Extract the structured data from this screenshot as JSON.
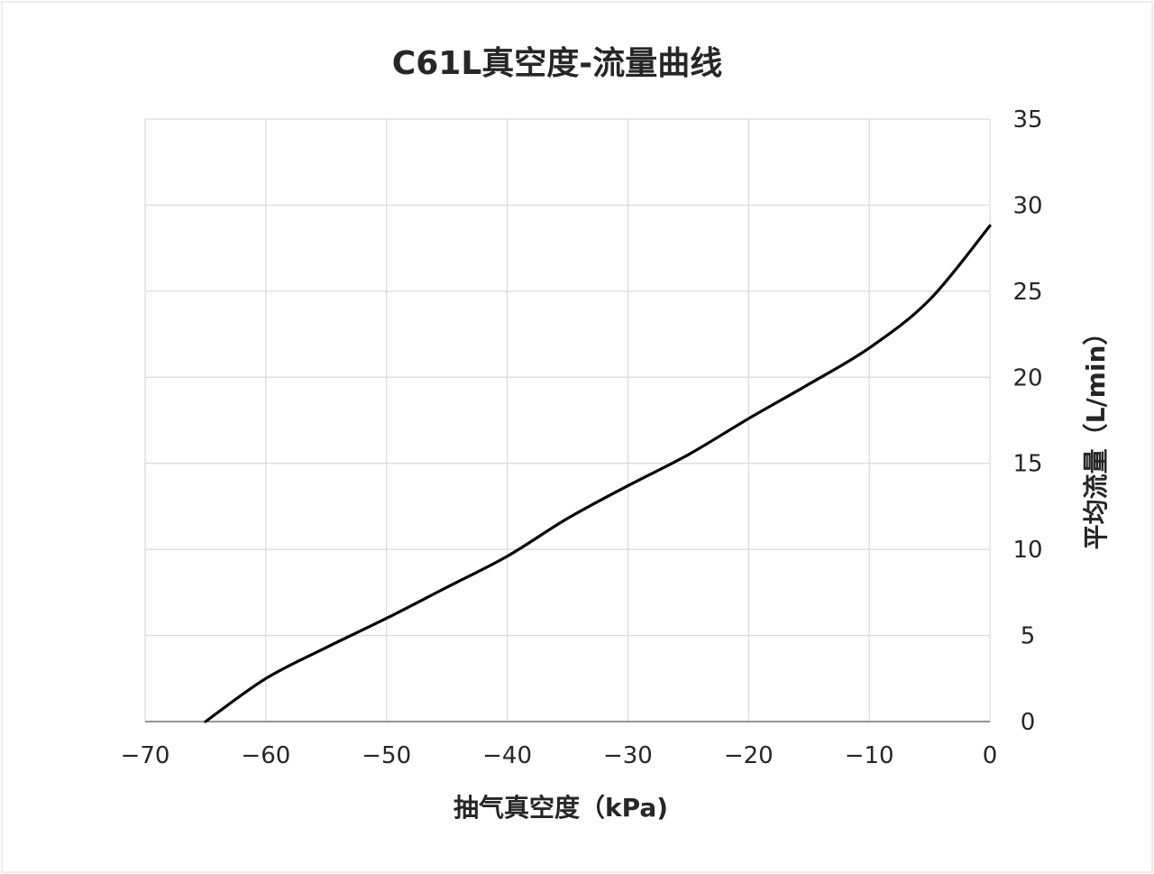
{
  "chart_data": {
    "type": "line",
    "title": "C61L真空度-流量曲线",
    "xlabel": "抽气真空度（kPa)",
    "ylabel": "平均流量（L/min）",
    "xlim": [
      -70,
      0
    ],
    "ylim": [
      0,
      35
    ],
    "xticks": [
      "−70",
      "−60",
      "−50",
      "−40",
      "−30",
      "−20",
      "−10",
      "0"
    ],
    "yticks": [
      "0",
      "5",
      "10",
      "15",
      "20",
      "25",
      "30",
      "35"
    ],
    "y_axis_side": "right",
    "grid": true,
    "legend": "none",
    "line_color": "#000000",
    "series": [
      {
        "x": [
          -65,
          -60,
          -55,
          -50,
          -45,
          -40,
          -35,
          -30,
          -25,
          -20,
          -15,
          -10,
          -5,
          0
        ],
        "y": [
          0,
          2.5,
          4.3,
          6.0,
          7.8,
          9.6,
          11.8,
          13.7,
          15.5,
          17.6,
          19.6,
          21.7,
          24.5,
          28.8
        ]
      }
    ]
  }
}
